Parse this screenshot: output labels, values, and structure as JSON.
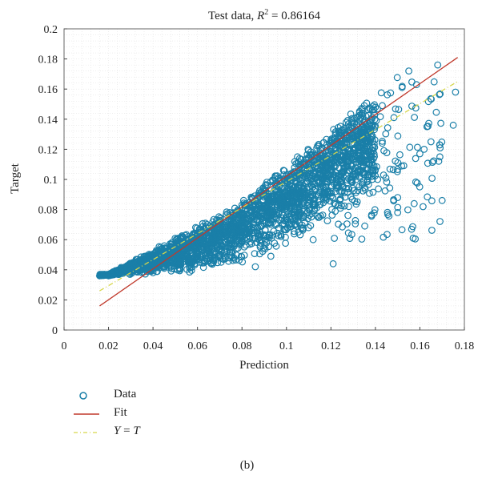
{
  "chart_data": {
    "type": "scatter",
    "title": "Test data, R² = 0.86164",
    "title_prefix": "Test data, ",
    "title_var": "R",
    "title_sup": "2",
    "title_value": " = 0.86164",
    "xlabel": "Prediction",
    "ylabel": "Target",
    "xlim": [
      0,
      0.18
    ],
    "ylim": [
      0,
      0.2
    ],
    "xticks": [
      0,
      0.02,
      0.04,
      0.06,
      0.08,
      0.1,
      0.12,
      0.14,
      0.16,
      0.18
    ],
    "xtick_labels": [
      "0",
      "0.02",
      "0.04",
      "0.06",
      "0.08",
      "0.1",
      "0.12",
      "0.14",
      "0.16",
      "0.18"
    ],
    "yticks": [
      0,
      0.02,
      0.04,
      0.06,
      0.08,
      0.1,
      0.12,
      0.14,
      0.16,
      0.18,
      0.2
    ],
    "ytick_labels": [
      "0",
      "0.02",
      "0.04",
      "0.06",
      "0.08",
      "0.1",
      "0.12",
      "0.14",
      "0.16",
      "0.18",
      "0.2"
    ],
    "grid": true,
    "legend_position": "below-left",
    "series": [
      {
        "name": "Data",
        "kind": "scatter",
        "marker": "circle-open",
        "color": "#1a7fa8",
        "x_range": [
          0.016,
          0.176
        ],
        "note_points": [
          [
            0.016,
            0.036
          ],
          [
            0.02,
            0.036
          ],
          [
            0.03,
            0.039
          ],
          [
            0.04,
            0.045
          ],
          [
            0.05,
            0.053
          ],
          [
            0.06,
            0.063
          ],
          [
            0.07,
            0.072
          ],
          [
            0.08,
            0.083
          ],
          [
            0.09,
            0.093
          ],
          [
            0.1,
            0.103
          ],
          [
            0.11,
            0.114
          ],
          [
            0.12,
            0.124
          ],
          [
            0.13,
            0.138
          ],
          [
            0.14,
            0.148
          ],
          [
            0.155,
            0.172
          ],
          [
            0.168,
            0.176
          ],
          [
            0.176,
            0.158
          ],
          [
            0.175,
            0.136
          ],
          [
            0.17,
            0.086
          ],
          [
            0.15,
            0.078
          ],
          [
            0.15,
            0.088
          ],
          [
            0.121,
            0.044
          ],
          [
            0.086,
            0.042
          ],
          [
            0.093,
            0.049
          ],
          [
            0.112,
            0.06
          ],
          [
            0.16,
            0.117
          ],
          [
            0.169,
            0.115
          ],
          [
            0.165,
            0.125
          ],
          [
            0.141,
            0.1
          ],
          [
            0.128,
            0.082
          ]
        ]
      },
      {
        "name": "Fit",
        "kind": "line",
        "color": "#c0392b",
        "x": [
          0.016,
          0.177
        ],
        "y": [
          0.016,
          0.181
        ]
      },
      {
        "name": "Y = T",
        "label_prefix": "Y",
        "label_mid": " = ",
        "label_suffix": "T",
        "kind": "line",
        "style": "dash-dot",
        "color": "#d6d64a",
        "x": [
          0.016,
          0.177
        ],
        "y": [
          0.026,
          0.165
        ]
      }
    ]
  },
  "caption": "(b)"
}
